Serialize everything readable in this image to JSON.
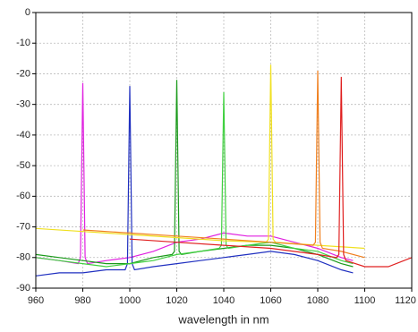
{
  "chart_data": {
    "type": "line",
    "x_label": "wavelength in nm",
    "xlim": [
      960,
      1120
    ],
    "xticks": [
      960,
      980,
      1000,
      1020,
      1040,
      1060,
      1080,
      1100,
      1120
    ],
    "ylim": [
      -90,
      0
    ],
    "yticks": [
      -90,
      -80,
      -70,
      -60,
      -50,
      -40,
      -30,
      -20,
      -10,
      0
    ],
    "grid": true,
    "series": [
      {
        "color": "#e020e0",
        "x": [
          960,
          970,
          978,
          979,
          980,
          981,
          982,
          990,
          1000,
          1010,
          1020,
          1030,
          1040,
          1050,
          1060,
          1070,
          1080,
          1090,
          1095
        ],
        "values": [
          -80,
          -81,
          -82,
          -80,
          -23,
          -80,
          -82,
          -81,
          -80,
          -78,
          -75,
          -74,
          -72,
          -73,
          -73,
          -75,
          -77,
          -80,
          -81
        ]
      },
      {
        "color": "#2030c0",
        "x": [
          960,
          970,
          980,
          990,
          998,
          999,
          1000,
          1001,
          1002,
          1010,
          1020,
          1030,
          1040,
          1050,
          1060,
          1070,
          1080,
          1090,
          1095
        ],
        "values": [
          -86,
          -85,
          -85,
          -84,
          -84,
          -82,
          -24,
          -82,
          -84,
          -83,
          -82,
          -81,
          -80,
          -79,
          -78,
          -79,
          -81,
          -84,
          -85
        ]
      },
      {
        "color": "#1a9a1a",
        "x": [
          960,
          970,
          980,
          990,
          1000,
          1010,
          1018,
          1019,
          1020,
          1021,
          1022,
          1030,
          1040,
          1050,
          1060,
          1070,
          1080,
          1090,
          1095
        ],
        "values": [
          -79,
          -80,
          -81,
          -82,
          -82,
          -80,
          -79,
          -78,
          -22,
          -78,
          -79,
          -78,
          -77,
          -76,
          -76,
          -77,
          -79,
          -82,
          -83
        ]
      },
      {
        "color": "#40d040",
        "x": [
          960,
          970,
          980,
          990,
          1000,
          1010,
          1020,
          1030,
          1038,
          1039,
          1040,
          1041,
          1042,
          1050,
          1060,
          1070,
          1080,
          1090,
          1095
        ],
        "values": [
          -80,
          -81,
          -82,
          -83,
          -82,
          -81,
          -79,
          -78,
          -77,
          -76,
          -26,
          -76,
          -77,
          -76,
          -75,
          -77,
          -78,
          -81,
          -82
        ]
      },
      {
        "color": "#f0e020",
        "x": [
          960,
          980,
          1000,
          1020,
          1040,
          1058,
          1059,
          1060,
          1061,
          1062,
          1080,
          1100
        ],
        "values": [
          -70.5,
          -71.5,
          -72.5,
          -73.5,
          -74.5,
          -75,
          -74,
          -17,
          -74,
          -75,
          -76,
          -77
        ]
      },
      {
        "color": "#f08020",
        "x": [
          980,
          1000,
          1020,
          1040,
          1060,
          1078,
          1079,
          1080,
          1081,
          1082,
          1090,
          1100
        ],
        "values": [
          -71,
          -72,
          -73,
          -74,
          -75,
          -76,
          -75,
          -19,
          -75,
          -77,
          -78,
          -80
        ]
      },
      {
        "color": "#e02020",
        "x": [
          1000,
          1020,
          1040,
          1060,
          1080,
          1088,
          1089,
          1090,
          1091,
          1092,
          1100,
          1110,
          1120
        ],
        "values": [
          -74,
          -75,
          -76,
          -77,
          -79,
          -80,
          -79,
          -21,
          -79,
          -81,
          -83,
          -83,
          -80
        ]
      }
    ]
  }
}
